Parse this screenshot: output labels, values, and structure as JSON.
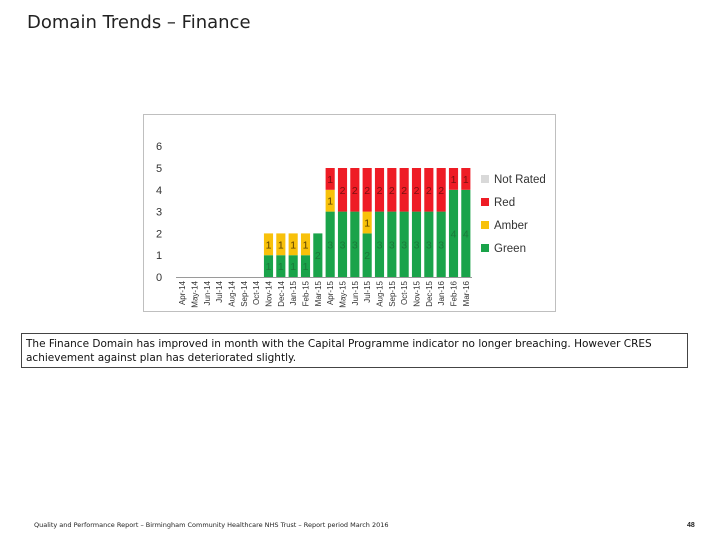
{
  "slide": {
    "title": "Domain Trends – Finance",
    "summary": "The Finance Domain has improved in month with the Capital Programme indicator no longer breaching. However CRES achievement against plan has deteriorated slightly.",
    "footer": "Quality and Performance Report – Birmingham Community Healthcare NHS Trust – Report period March 2016",
    "page_number": "48"
  },
  "colors": {
    "green": "#1aa34a",
    "amber": "#f8c10a",
    "red": "#ee1c25",
    "not_rated": "#d9d9d9",
    "label_green": "#1a7a3a",
    "label_amber": "#5a4000",
    "label_red": "#7a1010"
  },
  "chart_data": {
    "type": "bar",
    "stacked": true,
    "ylim": [
      0,
      6
    ],
    "yticks": [
      "0",
      "1",
      "2",
      "3",
      "4",
      "5",
      "6"
    ],
    "grid": false,
    "legend_position": "right",
    "categories": [
      "Apr-14",
      "May-14",
      "Jun-14",
      "Jul-14",
      "Aug-14",
      "Sep-14",
      "Oct-14",
      "Nov-14",
      "Dec-14",
      "Jan-15",
      "Feb-15",
      "Mar-15",
      "Apr-15",
      "May-15",
      "Jun-15",
      "Jul-15",
      "Aug-15",
      "Sep-15",
      "Oct-15",
      "Nov-15",
      "Dec-15",
      "Jan-16",
      "Feb-16",
      "Mar-16"
    ],
    "series": [
      {
        "name": "Green",
        "color_key": "green",
        "values": [
          0,
          0,
          0,
          0,
          0,
          0,
          0,
          1,
          1,
          1,
          1,
          2,
          3,
          3,
          3,
          2,
          3,
          3,
          3,
          3,
          3,
          3,
          4,
          4
        ]
      },
      {
        "name": "Amber",
        "color_key": "amber",
        "values": [
          0,
          0,
          0,
          0,
          0,
          0,
          0,
          1,
          1,
          1,
          1,
          0,
          1,
          0,
          0,
          1,
          0,
          0,
          0,
          0,
          0,
          0,
          0,
          0
        ]
      },
      {
        "name": "Red",
        "color_key": "red",
        "values": [
          0,
          0,
          0,
          0,
          0,
          0,
          0,
          0,
          0,
          0,
          0,
          0,
          1,
          2,
          2,
          2,
          2,
          2,
          2,
          2,
          2,
          2,
          1,
          1
        ]
      },
      {
        "name": "Not Rated",
        "color_key": "not_rated",
        "values": [
          0,
          0,
          0,
          0,
          0,
          0,
          0,
          0,
          0,
          0,
          0,
          0,
          0,
          0,
          0,
          0,
          0,
          0,
          0,
          0,
          0,
          0,
          0,
          0
        ]
      }
    ],
    "legend": [
      "Not Rated",
      "Red",
      "Amber",
      "Green"
    ]
  }
}
